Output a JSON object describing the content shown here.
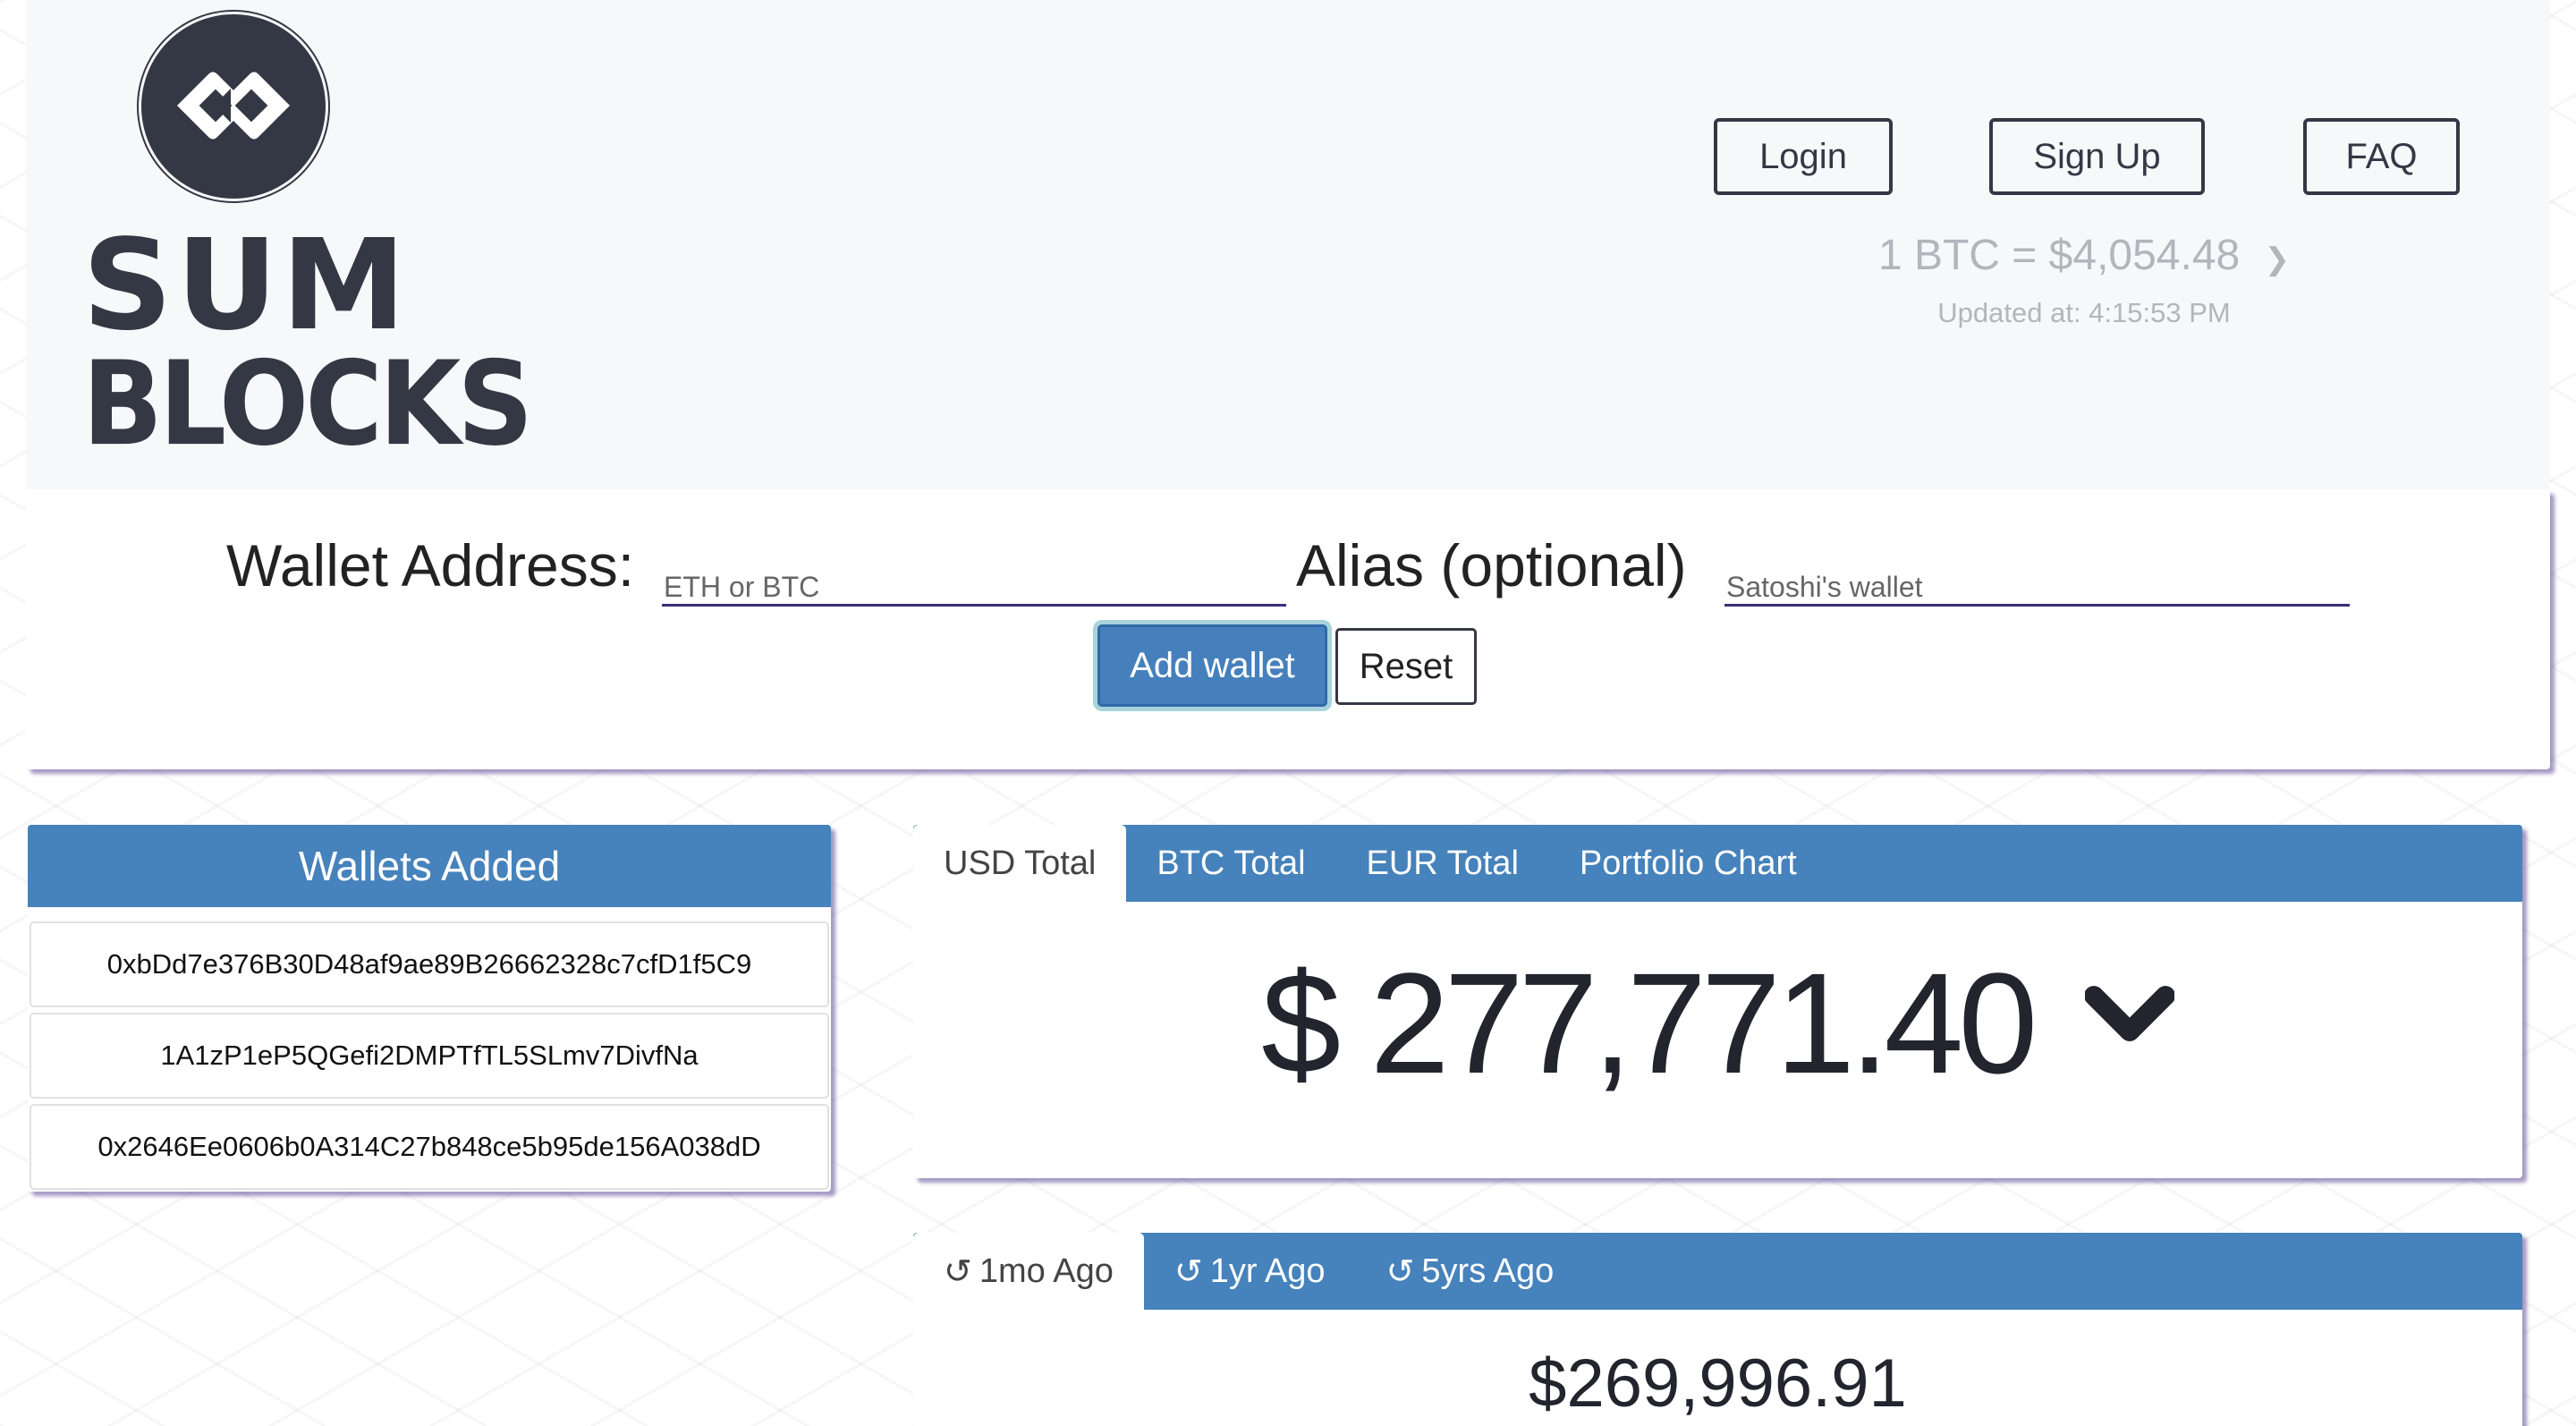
{
  "brand": {
    "line1": "SUM",
    "line2": "BLOCKS"
  },
  "nav": {
    "login": "Login",
    "signup": "Sign Up",
    "faq": "FAQ"
  },
  "rate": {
    "text": "1 BTC = $4,054.48",
    "updated": "Updated at: 4:15:53 PM"
  },
  "form": {
    "wallet_label": "Wallet Address:",
    "wallet_placeholder": "ETH or BTC",
    "alias_label": "Alias (optional)",
    "alias_placeholder": "Satoshi's wallet",
    "add": "Add wallet",
    "reset": "Reset"
  },
  "wallets": {
    "title": "Wallets Added",
    "items": [
      "0xbDd7e376B30D48af9ae89B26662328c7cfD1f5C9",
      "1A1zP1eP5QGefi2DMPTfTL5SLmv7DivfNa",
      "0x2646Ee0606b0A314C27b848ce5b95de156A038dD"
    ]
  },
  "totals": {
    "tabs": [
      "USD Total",
      "BTC Total",
      "EUR Total",
      "Portfolio Chart"
    ],
    "active": "USD Total",
    "value": "$ 277,771.40"
  },
  "history": {
    "tabs": [
      "1mo Ago",
      "1yr Ago",
      "5yrs Ago"
    ],
    "active": "1mo Ago",
    "value": "$269,996.91"
  },
  "colors": {
    "accent": "#4682bb",
    "dark": "#343845",
    "muted": "#b2b6bc"
  }
}
